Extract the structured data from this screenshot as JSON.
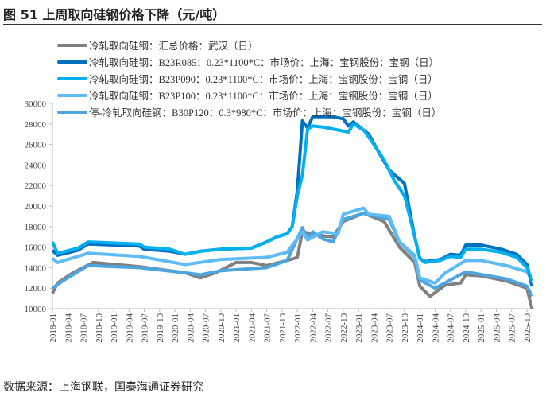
{
  "title": "图 51  上周取向硅钢价格下降（元/吨）",
  "source": "数据来源：上海钢联，国泰海通证券研究",
  "chart_data": {
    "type": "line",
    "title": "图 51  上周取向硅钢价格下降（元/吨）",
    "xlabel": "",
    "ylabel": "",
    "ylim": [
      10000,
      30000
    ],
    "yticks": [
      10000,
      12000,
      14000,
      16000,
      18000,
      20000,
      22000,
      24000,
      26000,
      28000,
      30000
    ],
    "xticks": [
      "2018-01",
      "2018-04",
      "2018-07",
      "2018-10",
      "2019-01",
      "2019-04",
      "2019-07",
      "2019-10",
      "2020-01",
      "2020-04",
      "2020-07",
      "2020-10",
      "2021-01",
      "2021-04",
      "2021-07",
      "2021-10",
      "2022-01",
      "2022-04",
      "2022-07",
      "2022-10",
      "2023-01",
      "2023-04",
      "2023-07",
      "2023-10",
      "2024-01",
      "2024-04",
      "2024-07",
      "2024-10",
      "2025-01",
      "2025-04",
      "2025-07",
      "2025-10"
    ],
    "grid": false,
    "legend": "top",
    "series": [
      {
        "name": "冷轧取向硅钢：汇总价格：武汉（日）",
        "color": "#808080",
        "points": [
          [
            "2018-01",
            11500
          ],
          [
            "2018-02",
            12500
          ],
          [
            "2018-05",
            13500
          ],
          [
            "2018-09",
            14500
          ],
          [
            "2019-06",
            14100
          ],
          [
            "2020-03",
            13500
          ],
          [
            "2020-06",
            13000
          ],
          [
            "2020-09",
            13500
          ],
          [
            "2021-01",
            14500
          ],
          [
            "2021-04",
            14500
          ],
          [
            "2021-07",
            14200
          ],
          [
            "2021-11",
            14700
          ],
          [
            "2022-01",
            15000
          ],
          [
            "2022-02",
            17500
          ],
          [
            "2022-06",
            17100
          ],
          [
            "2022-08",
            17000
          ],
          [
            "2022-10",
            18500
          ],
          [
            "2023-02",
            19300
          ],
          [
            "2023-06",
            18500
          ],
          [
            "2023-09",
            16000
          ],
          [
            "2023-12",
            14500
          ],
          [
            "2024-01",
            12200
          ],
          [
            "2024-03",
            11200
          ],
          [
            "2024-06",
            12300
          ],
          [
            "2024-09",
            12500
          ],
          [
            "2024-10",
            13300
          ],
          [
            "2025-01",
            13200
          ],
          [
            "2025-06",
            12700
          ],
          [
            "2025-10",
            12000
          ],
          [
            "2025-11",
            10000
          ]
        ]
      },
      {
        "name": "冷轧取向硅钢：B23R085：0.23*1100*C：市场价：上海：宝钢股份：宝钢（日）",
        "color": "#0070C0",
        "points": [
          [
            "2018-01",
            15700
          ],
          [
            "2018-02",
            15200
          ],
          [
            "2018-06",
            15700
          ],
          [
            "2018-08",
            16300
          ],
          [
            "2019-06",
            16100
          ],
          [
            "2019-07",
            15800
          ],
          [
            "2019-12",
            15600
          ],
          [
            "2020-03",
            15300
          ],
          [
            "2020-06",
            15600
          ],
          [
            "2020-10",
            15800
          ],
          [
            "2021-04",
            15900
          ],
          [
            "2021-07",
            16500
          ],
          [
            "2021-09",
            17000
          ],
          [
            "2021-11",
            17300
          ],
          [
            "2021-12",
            18000
          ],
          [
            "2022-01",
            21500
          ],
          [
            "2022-02",
            28300
          ],
          [
            "2022-03",
            27600
          ],
          [
            "2022-04",
            28700
          ],
          [
            "2022-08",
            28700
          ],
          [
            "2022-10",
            28500
          ],
          [
            "2022-11",
            27800
          ],
          [
            "2022-12",
            28200
          ],
          [
            "2023-03",
            27000
          ],
          [
            "2023-05",
            25200
          ],
          [
            "2023-07",
            23500
          ],
          [
            "2023-10",
            22200
          ],
          [
            "2023-12",
            17000
          ],
          [
            "2024-01",
            14900
          ],
          [
            "2024-02",
            14600
          ],
          [
            "2024-05",
            14800
          ],
          [
            "2024-07",
            15300
          ],
          [
            "2024-09",
            15200
          ],
          [
            "2024-10",
            16200
          ],
          [
            "2025-01",
            16200
          ],
          [
            "2025-05",
            15800
          ],
          [
            "2025-08",
            15300
          ],
          [
            "2025-10",
            14300
          ],
          [
            "2025-11",
            12200
          ]
        ]
      },
      {
        "name": "冷轧取向硅钢：B23P090：0.23*1100*C：市场价：上海：宝钢股份：宝钢（日）",
        "color": "#00B0F0",
        "points": [
          [
            "2018-01",
            16500
          ],
          [
            "2018-02",
            15400
          ],
          [
            "2018-06",
            15900
          ],
          [
            "2018-08",
            16500
          ],
          [
            "2019-06",
            16300
          ],
          [
            "2019-07",
            16000
          ],
          [
            "2019-12",
            15800
          ],
          [
            "2020-03",
            15300
          ],
          [
            "2020-06",
            15600
          ],
          [
            "2020-10",
            15800
          ],
          [
            "2021-04",
            15900
          ],
          [
            "2021-07",
            16500
          ],
          [
            "2021-09",
            17000
          ],
          [
            "2021-11",
            17300
          ],
          [
            "2021-12",
            18000
          ],
          [
            "2022-01",
            21000
          ],
          [
            "2022-02",
            23000
          ],
          [
            "2022-03",
            27500
          ],
          [
            "2022-04",
            27800
          ],
          [
            "2022-06",
            27700
          ],
          [
            "2022-09",
            27400
          ],
          [
            "2022-11",
            27200
          ],
          [
            "2022-12",
            28000
          ],
          [
            "2023-02",
            27400
          ],
          [
            "2023-04",
            26000
          ],
          [
            "2023-06",
            24500
          ],
          [
            "2023-08",
            22500
          ],
          [
            "2023-10",
            21000
          ],
          [
            "2023-12",
            17000
          ],
          [
            "2024-01",
            14900
          ],
          [
            "2024-02",
            14500
          ],
          [
            "2024-05",
            14700
          ],
          [
            "2024-07",
            15100
          ],
          [
            "2024-09",
            15000
          ],
          [
            "2024-10",
            15800
          ],
          [
            "2025-01",
            15800
          ],
          [
            "2025-05",
            15500
          ],
          [
            "2025-08",
            15000
          ],
          [
            "2025-10",
            14000
          ],
          [
            "2025-11",
            12700
          ]
        ]
      },
      {
        "name": "冷轧取向硅钢：B23P100：0.23*1100*C：市场价：上海：宝钢股份：宝钢（日）",
        "color": "#5DBBF5",
        "points": [
          [
            "2018-01",
            14900
          ],
          [
            "2018-02",
            14500
          ],
          [
            "2018-08",
            15400
          ],
          [
            "2019-06",
            15100
          ],
          [
            "2020-03",
            14300
          ],
          [
            "2020-10",
            14800
          ],
          [
            "2021-07",
            15000
          ],
          [
            "2021-11",
            15500
          ],
          [
            "2022-02",
            17500
          ],
          [
            "2022-03",
            16700
          ],
          [
            "2022-06",
            17500
          ],
          [
            "2022-09",
            17300
          ],
          [
            "2022-10",
            19200
          ],
          [
            "2023-02",
            19800
          ],
          [
            "2023-03",
            19200
          ],
          [
            "2023-07",
            19000
          ],
          [
            "2023-09",
            16500
          ],
          [
            "2023-12",
            15200
          ],
          [
            "2024-01",
            13000
          ],
          [
            "2024-04",
            12500
          ],
          [
            "2024-06",
            13500
          ],
          [
            "2024-10",
            14700
          ],
          [
            "2025-01",
            14700
          ],
          [
            "2025-06",
            14200
          ],
          [
            "2025-10",
            13600
          ],
          [
            "2025-11",
            12800
          ]
        ]
      },
      {
        "name": "停-冷轧取向硅钢：B30P120：0.3*980*C：市场价：上海：宝钢股份：宝钢（日）",
        "color": "#4BA6E0",
        "points": [
          [
            "2018-01",
            12000
          ],
          [
            "2018-03",
            12700
          ],
          [
            "2018-08",
            14200
          ],
          [
            "2019-06",
            14000
          ],
          [
            "2020-03",
            13500
          ],
          [
            "2020-06",
            13300
          ],
          [
            "2020-10",
            13700
          ],
          [
            "2021-07",
            14000
          ],
          [
            "2021-11",
            14700
          ],
          [
            "2022-02",
            17900
          ],
          [
            "2022-03",
            16700
          ],
          [
            "2022-04",
            17500
          ],
          [
            "2022-06",
            16800
          ],
          [
            "2022-08",
            16500
          ],
          [
            "2022-10",
            18700
          ],
          [
            "2023-02",
            19300
          ],
          [
            "2023-07",
            18700
          ],
          [
            "2023-09",
            16500
          ],
          [
            "2023-12",
            15000
          ],
          [
            "2024-01",
            12800
          ],
          [
            "2024-04",
            12000
          ],
          [
            "2024-07",
            12800
          ],
          [
            "2024-10",
            13600
          ],
          [
            "2025-06",
            12900
          ],
          [
            "2025-10",
            12200
          ],
          [
            "2025-11",
            11200
          ]
        ]
      }
    ]
  }
}
